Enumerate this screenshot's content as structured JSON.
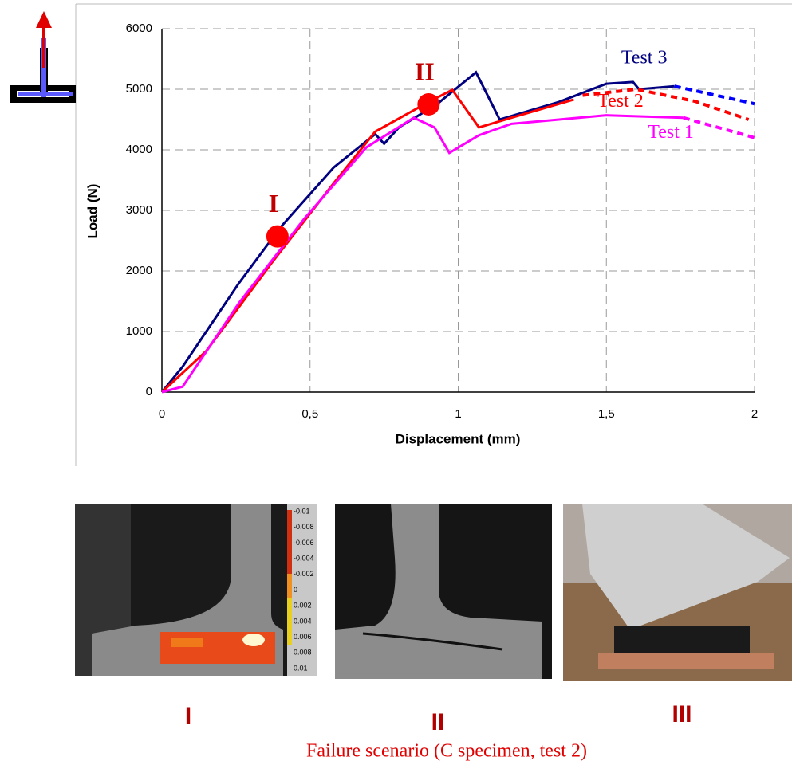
{
  "chart_data": {
    "type": "line",
    "xlabel": "Displacement (mm)",
    "ylabel": "Load (N)",
    "xlim": [
      0,
      2
    ],
    "ylim": [
      0,
      6000
    ],
    "xticks": [
      0,
      {
        "value": 0.5,
        "label": "0,5"
      },
      1,
      {
        "value": 1.5,
        "label": "1,5"
      },
      2
    ],
    "yticks": [
      0,
      1000,
      2000,
      3000,
      4000,
      5000,
      6000
    ],
    "grid": true,
    "series": [
      {
        "name": "Test 3",
        "color": "#000080",
        "label_at": [
          1.55,
          5500
        ],
        "x": [
          0,
          0.07,
          0.26,
          0.4,
          0.58,
          0.72,
          0.75,
          0.8,
          0.93,
          1.06,
          1.14,
          1.34,
          1.5,
          1.59,
          1.61,
          1.73
        ],
        "values": [
          0,
          420,
          1800,
          2720,
          3710,
          4260,
          4100,
          4370,
          4760,
          5280,
          4500,
          4790,
          5090,
          5120,
          5000,
          5050
        ]
      },
      {
        "color": "#0000ff",
        "dashed": true,
        "x": [
          1.73,
          2
        ],
        "values": [
          5050,
          4760
        ]
      },
      {
        "name": "Test 2",
        "color": "#ff0000",
        "label_at": [
          1.47,
          4780
        ],
        "x": [
          0,
          0.15,
          0.37,
          0.58,
          0.72,
          0.9,
          0.98,
          1.07,
          1.18,
          1.39
        ],
        "values": [
          0,
          680,
          2130,
          3450,
          4300,
          4790,
          4990,
          4370,
          4530,
          4830
        ]
      },
      {
        "color": "#ff0000",
        "dashed": true,
        "x": [
          1.42,
          1.6,
          1.8,
          1.98
        ],
        "values": [
          4900,
          5000,
          4800,
          4500
        ]
      },
      {
        "name": "Test 1",
        "color": "#ff00ff",
        "label_at": [
          1.64,
          4270
        ],
        "x": [
          0,
          0.07,
          0.26,
          0.48,
          0.69,
          0.85,
          0.92,
          0.97,
          1.07,
          1.18,
          1.34,
          1.5,
          1.76
        ],
        "values": [
          0,
          90,
          1470,
          2860,
          4040,
          4530,
          4370,
          3950,
          4240,
          4430,
          4500,
          4570,
          4530
        ]
      },
      {
        "color": "#ff00ff",
        "dashed": true,
        "x": [
          1.76,
          2
        ],
        "values": [
          4530,
          4200
        ]
      }
    ],
    "points": [
      {
        "label": "I",
        "x": 0.39,
        "y": 2570,
        "color": "#ff0000"
      },
      {
        "label": "II",
        "x": 0.9,
        "y": 4750,
        "color": "#ff0000"
      }
    ]
  },
  "panels": [
    {
      "label": "I",
      "colorbar": [
        "-0.01",
        "-0.008",
        "-0.006",
        "-0.004",
        "-0.002",
        "0",
        "0.002",
        "0.004",
        "0.006",
        "0.008",
        "0.01"
      ]
    },
    {
      "label": "II"
    },
    {
      "label": "III"
    }
  ],
  "caption": "Failure scenario (C specimen, test 2)"
}
